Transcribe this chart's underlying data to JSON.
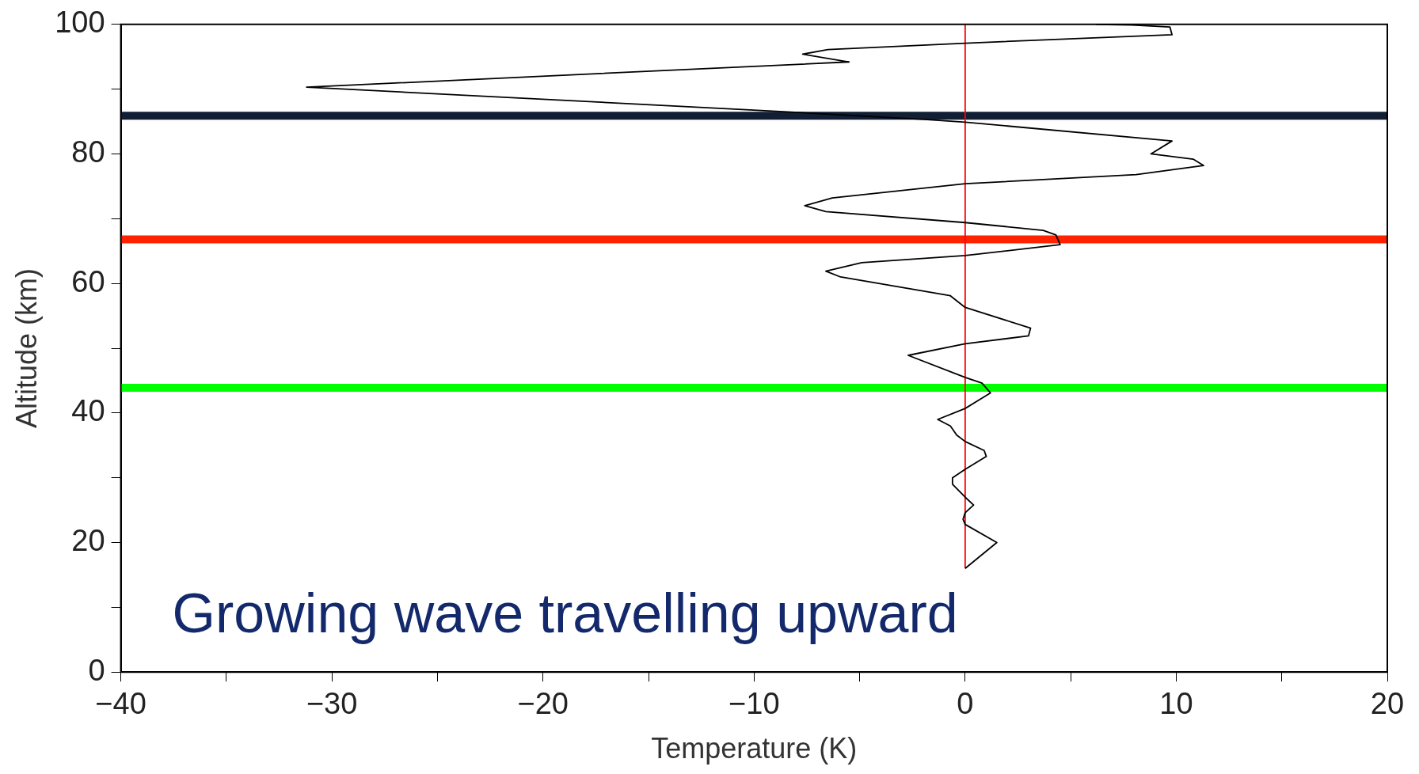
{
  "chart_data": {
    "type": "line",
    "xlabel": "Temperature (K)",
    "ylabel": "Altitude (km)",
    "xlim": [
      -40,
      20
    ],
    "ylim": [
      0,
      100
    ],
    "xticks": [
      -40,
      {
        "value": -35,
        "label": null
      },
      -30,
      {
        "value": -25,
        "label": null
      },
      -20,
      {
        "value": -15,
        "label": null
      },
      -10,
      {
        "value": -5,
        "label": null
      },
      0,
      {
        "value": 5,
        "label": null
      },
      10,
      {
        "value": 15,
        "label": null
      },
      20
    ],
    "yticks": [
      0,
      {
        "value": 10,
        "label": null
      },
      20,
      {
        "value": 30,
        "label": null
      },
      40,
      {
        "value": 50,
        "label": null
      },
      60,
      {
        "value": 70,
        "label": null
      },
      80,
      {
        "value": 90,
        "label": null
      },
      100
    ],
    "series": [
      {
        "color": "#000000",
        "x": [
          0,
          1.5,
          0,
          -0.1,
          0,
          0.4,
          0,
          -0.6,
          -0.6,
          0,
          1,
          0.9,
          0,
          -0.4,
          -0.7,
          -1.3,
          0,
          1.2,
          0.8,
          0,
          -2.7,
          0,
          3,
          3.1,
          0,
          -0.7,
          -5.9,
          -6.6,
          -4.9,
          0,
          4.5,
          4.3,
          3.7,
          0,
          -6.6,
          -7.6,
          -6.3,
          0,
          8.1,
          11.3,
          10.8,
          8.8,
          9.8,
          0,
          -1.8,
          -10.2,
          -31.2,
          -5.5,
          -7.7,
          -6.5,
          0,
          9.8,
          9.7,
          7.9,
          6.2
        ],
        "values": [
          16,
          20,
          22.8,
          23.6,
          24.6,
          25.8,
          27,
          29,
          30,
          31.3,
          33.3,
          34.2,
          35.6,
          36.6,
          38,
          39,
          40.7,
          43.1,
          44.6,
          45.5,
          48.9,
          50.7,
          51.9,
          53.1,
          56.3,
          58.1,
          61,
          61.9,
          63.2,
          64.3,
          66,
          67.5,
          68.2,
          69.4,
          71.1,
          72,
          73.2,
          75.4,
          76.8,
          78.2,
          79.2,
          80,
          82,
          84.9,
          85.3,
          86.8,
          90.3,
          94.2,
          95.4,
          96.1,
          97.1,
          98.4,
          99.6,
          99.9,
          100
        ]
      },
      {
        "color": "#ff0000",
        "x": [
          0,
          0
        ],
        "values": [
          16,
          100
        ]
      }
    ],
    "ref_lines": [
      {
        "axis": "y",
        "value": 85.9,
        "color": "#111e33"
      },
      {
        "axis": "y",
        "value": 66.8,
        "color": "#ff2200"
      },
      {
        "axis": "y",
        "value": 43.9,
        "color": "#00ff00"
      }
    ],
    "annotations": [
      "Growing wave travelling upward"
    ],
    "grid": false,
    "legend": false,
    "marker": "none",
    "line_style": "solid"
  }
}
